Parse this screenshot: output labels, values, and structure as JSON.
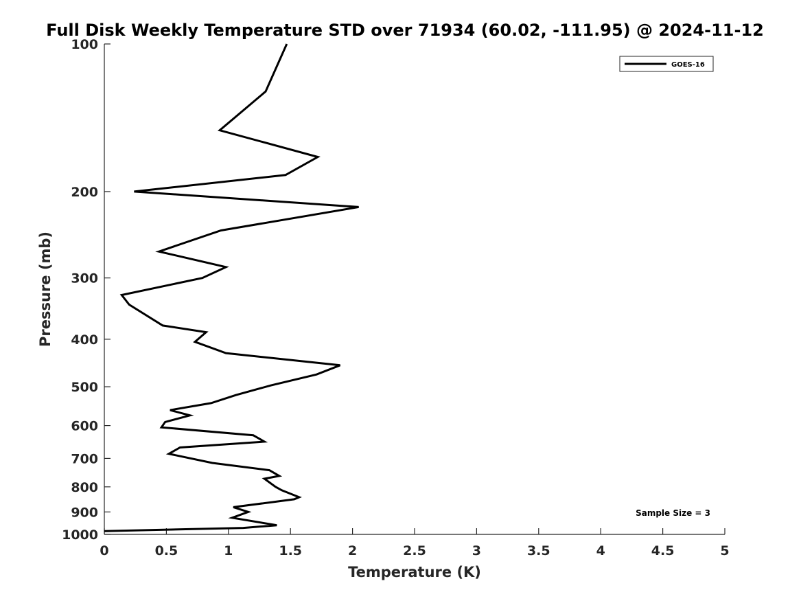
{
  "chart_data": {
    "type": "line",
    "title": "Full Disk Weekly Temperature STD over 71934 (60.02, -111.95) @ 2024-11-12",
    "xlabel": "Temperature (K)",
    "ylabel": "Pressure (mb)",
    "xlim": [
      0,
      5
    ],
    "ylim": [
      100,
      1000
    ],
    "yscale": "log",
    "y_reversed": true,
    "x_ticks": [
      0,
      0.5,
      1,
      1.5,
      2,
      2.5,
      3,
      3.5,
      4,
      4.5,
      5
    ],
    "x_tick_labels": [
      "0",
      "0.5",
      "1",
      "1.5",
      "2",
      "2.5",
      "3",
      "3.5",
      "4",
      "4.5",
      "5"
    ],
    "y_ticks": [
      100,
      200,
      300,
      400,
      500,
      600,
      700,
      800,
      900,
      1000
    ],
    "y_tick_labels": [
      "100",
      "200",
      "300",
      "400",
      "500",
      "600",
      "700",
      "800",
      "900",
      "1000"
    ],
    "grid": false,
    "legend_position": "top-right",
    "line_color": "#000000",
    "annotation": "Sample Size = 3",
    "series": [
      {
        "name": "GOES-16",
        "x": [
          1.47,
          1.3,
          0.93,
          1.72,
          1.46,
          0.24,
          2.05,
          0.94,
          0.44,
          0.98,
          0.79,
          0.14,
          0.2,
          0.47,
          0.82,
          0.73,
          0.98,
          1.9,
          1.71,
          1.34,
          1.06,
          0.86,
          0.53,
          0.69,
          0.49,
          0.46,
          1.2,
          1.29,
          0.61,
          0.52,
          0.87,
          1.33,
          1.41,
          1.29,
          1.38,
          1.43,
          1.57,
          1.53,
          1.04,
          1.16,
          1.03,
          1.39,
          1.12,
          0.0
        ],
        "y": [
          100,
          125,
          150,
          170,
          185,
          200,
          215,
          240,
          265,
          285,
          300,
          325,
          340,
          375,
          387,
          405,
          427,
          452,
          472,
          497,
          520,
          540,
          558,
          572,
          590,
          605,
          628,
          647,
          665,
          685,
          715,
          740,
          760,
          770,
          800,
          813,
          840,
          848,
          880,
          900,
          925,
          958,
          970,
          985
        ]
      }
    ]
  }
}
